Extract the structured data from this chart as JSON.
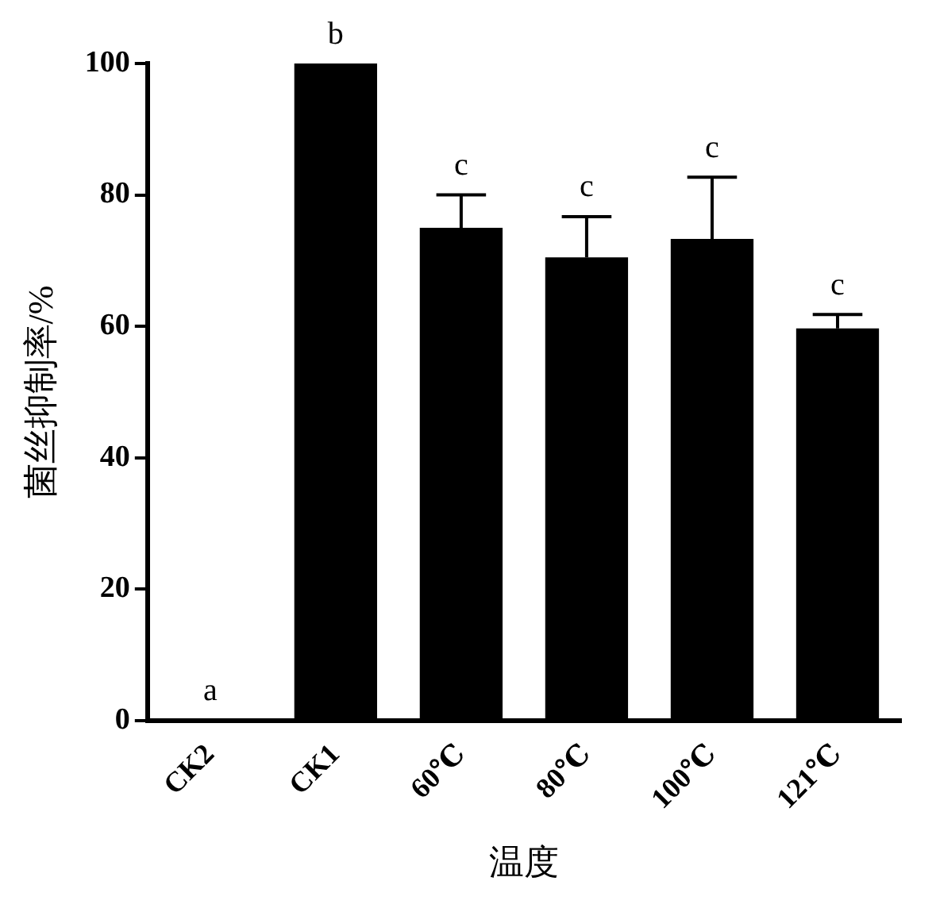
{
  "chart_data": {
    "type": "bar",
    "xlabel": "温度",
    "ylabel": "菌丝抑制率/%",
    "categories": [
      "CK2",
      "CK1",
      "60℃",
      "80℃",
      "100℃",
      "121℃"
    ],
    "values": [
      0,
      100,
      75,
      70.5,
      73.3,
      59.7
    ],
    "errors": [
      null,
      null,
      [
        75,
        80
      ],
      [
        70.5,
        76.7
      ],
      [
        73.3,
        82.7
      ],
      [
        59.7,
        61.8
      ]
    ],
    "color": "#000000",
    "ylim": [
      0,
      100
    ],
    "yticks": [
      0,
      20,
      40,
      60,
      80,
      100
    ],
    "grid": false,
    "legend": false,
    "annotations": [
      "a",
      "b",
      "c",
      "c",
      "c",
      "c"
    ]
  }
}
